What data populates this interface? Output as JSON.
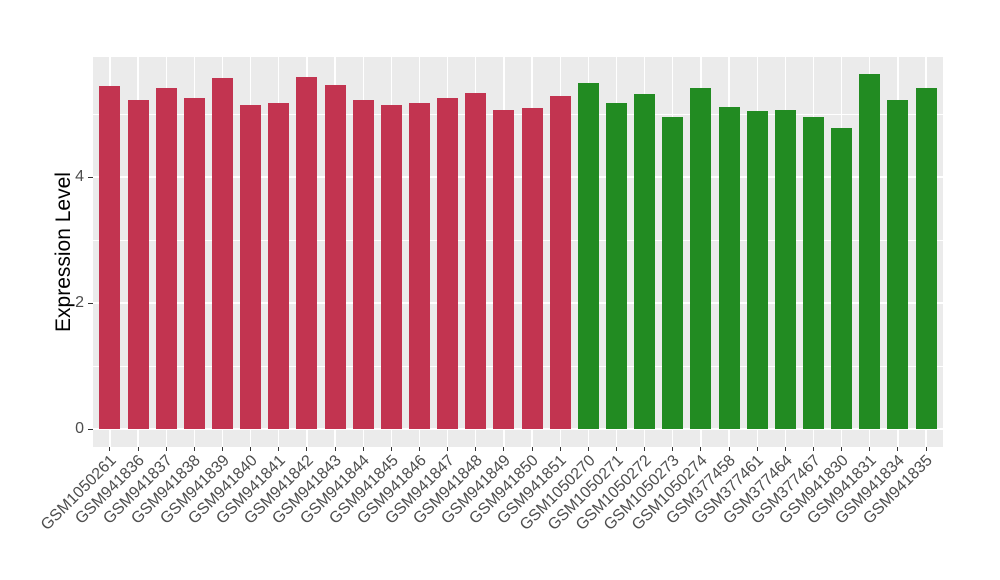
{
  "chart_data": {
    "type": "bar",
    "title": "",
    "xlabel": "",
    "ylabel": "Expression Level",
    "ylim": [
      -0.29,
      5.91
    ],
    "yticks": [
      0,
      2,
      4
    ],
    "yticks_minor": [
      1,
      3,
      5
    ],
    "grid": true,
    "legend_position": "none",
    "categories": [
      "GSM1050261",
      "GSM941836",
      "GSM941837",
      "GSM941838",
      "GSM941839",
      "GSM941840",
      "GSM941841",
      "GSM941842",
      "GSM941843",
      "GSM941844",
      "GSM941845",
      "GSM941846",
      "GSM941847",
      "GSM941848",
      "GSM941849",
      "GSM941850",
      "GSM941851",
      "GSM1050270",
      "GSM1050271",
      "GSM1050272",
      "GSM1050273",
      "GSM1050274",
      "GSM377458",
      "GSM377461",
      "GSM377464",
      "GSM377467",
      "GSM941830",
      "GSM941831",
      "GSM941834",
      "GSM941835"
    ],
    "values": [
      5.45,
      5.23,
      5.42,
      5.25,
      5.57,
      5.14,
      5.18,
      5.59,
      5.46,
      5.23,
      5.14,
      5.18,
      5.25,
      5.33,
      5.06,
      5.1,
      5.28,
      5.5,
      5.17,
      5.31,
      4.96,
      5.41,
      5.11,
      5.05,
      5.06,
      4.96,
      4.78,
      5.63,
      5.23,
      5.41
    ],
    "groups": [
      "red",
      "red",
      "red",
      "red",
      "red",
      "red",
      "red",
      "red",
      "red",
      "red",
      "red",
      "red",
      "red",
      "red",
      "red",
      "red",
      "red",
      "green",
      "green",
      "green",
      "green",
      "green",
      "green",
      "green",
      "green",
      "green",
      "green",
      "green",
      "green",
      "green"
    ],
    "colors": {
      "red": "#C23450",
      "green": "#228B22",
      "panel_background": "#EBEBEB",
      "gridline": "#FFFFFF",
      "tick_mark": "#333333",
      "tick_label": "#4D4D4D",
      "axis_title": "#000000"
    }
  }
}
